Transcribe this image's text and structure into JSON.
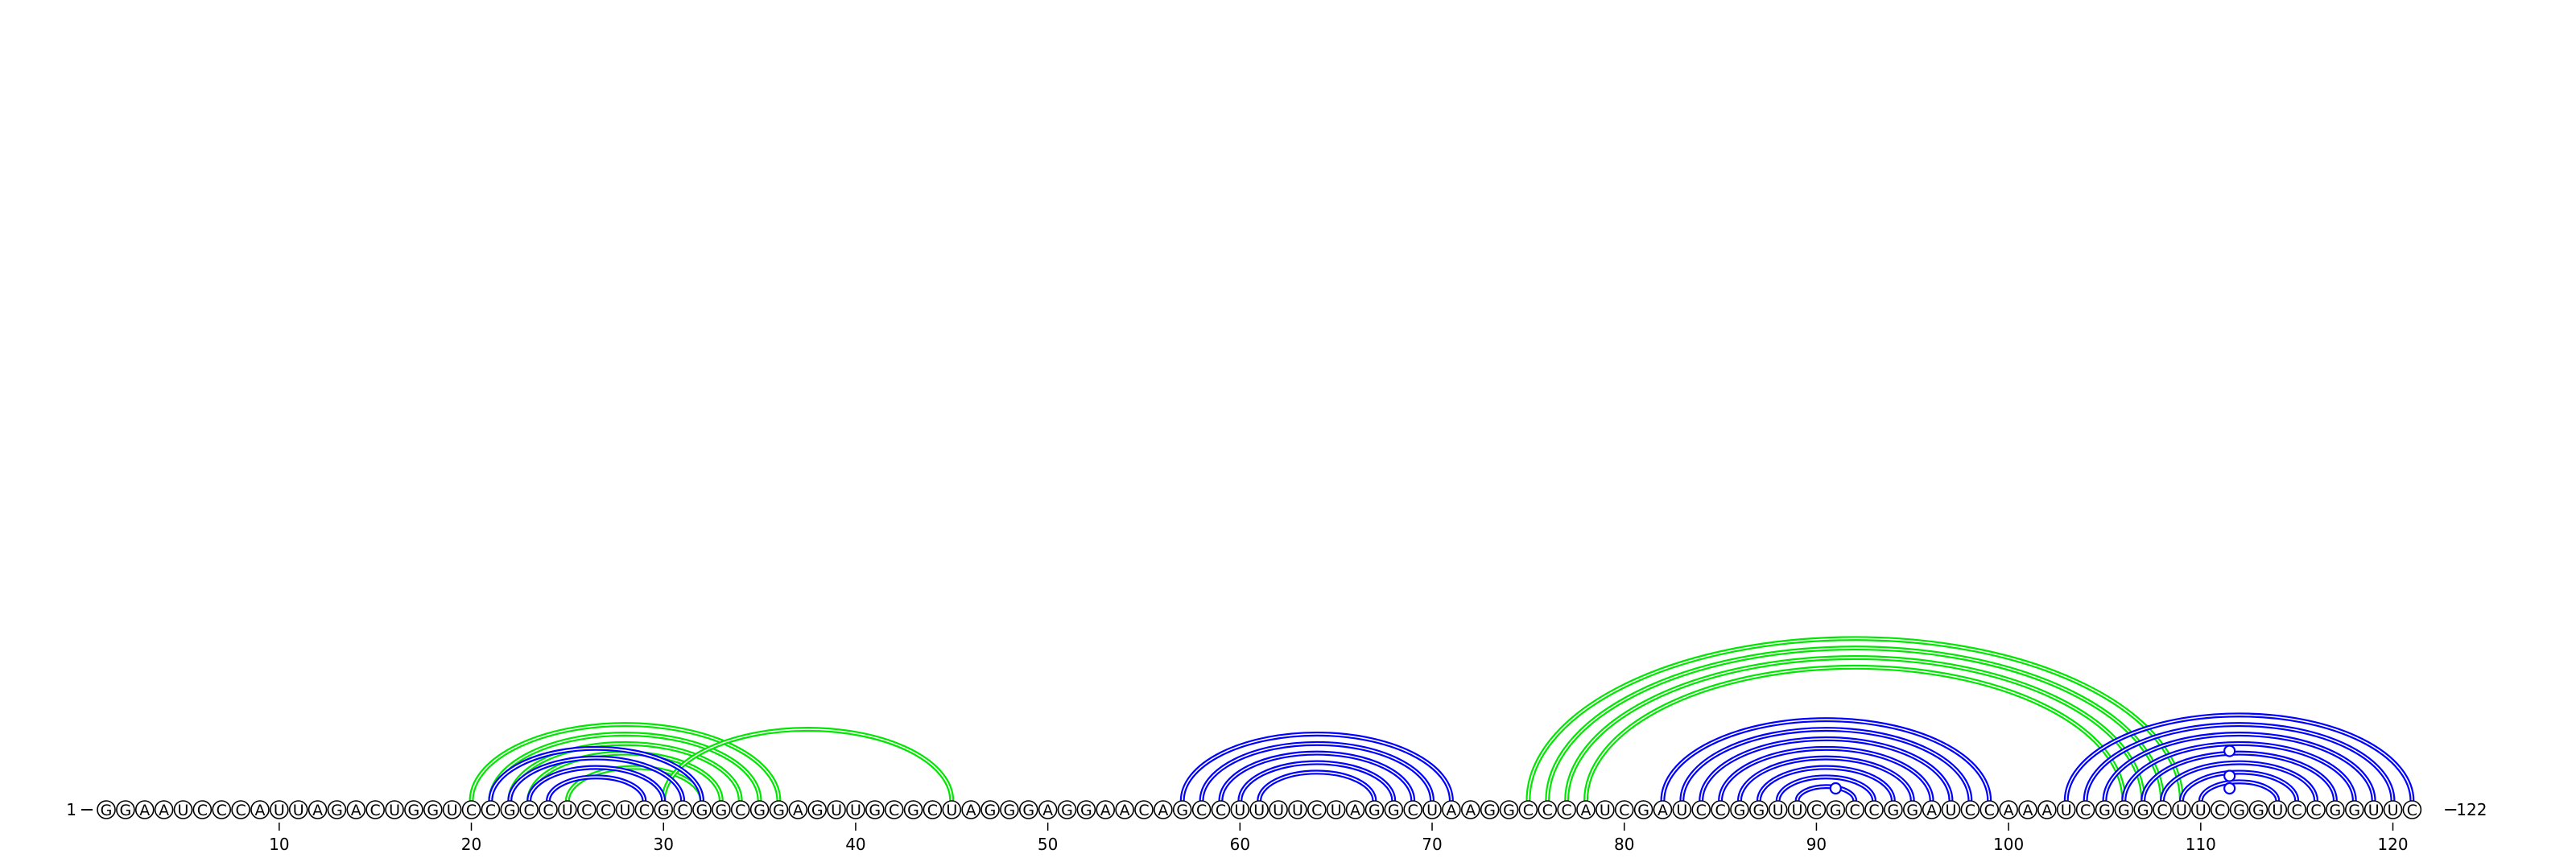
{
  "sequence": "GGAAUCCCAUUAGACUGGUCCGCCUCCUCGCGGCGGAGUUGCGCUAGGGAGGAACAGCCUUUUCUAGGCUAAGGCCCAUCGAUCCGGUUCGCCGGAUCCAAAUCGGGCUUCGGUCCGGUUC",
  "start_label": "1",
  "end_label": "122",
  "ticks": [
    10,
    20,
    30,
    40,
    50,
    60,
    70,
    80,
    90,
    100,
    110,
    120
  ],
  "colors": {
    "primary": "#0000ff",
    "secondary": "#00e600",
    "outline": "#000000",
    "background": "#ffffff"
  },
  "chart_data": {
    "type": "arc-diagram",
    "title": "",
    "length": 122,
    "primary_pairs": [
      [
        21,
        32
      ],
      [
        22,
        31
      ],
      [
        23,
        30
      ],
      [
        24,
        29
      ],
      [
        57,
        71
      ],
      [
        58,
        70
      ],
      [
        59,
        69
      ],
      [
        60,
        68
      ],
      [
        61,
        67
      ],
      [
        82,
        99
      ],
      [
        83,
        98
      ],
      [
        84,
        97
      ],
      [
        85,
        96
      ],
      [
        86,
        95
      ],
      [
        87,
        94
      ],
      [
        88,
        93
      ],
      [
        89,
        92
      ],
      [
        103,
        121
      ],
      [
        104,
        120
      ],
      [
        105,
        119
      ],
      [
        106,
        118
      ],
      [
        107,
        117
      ],
      [
        108,
        116
      ],
      [
        109,
        115
      ],
      [
        110,
        114
      ]
    ],
    "primary_pair_style": "double",
    "secondary_pairs": [
      [
        20,
        36
      ],
      [
        21,
        35
      ],
      [
        22,
        34
      ],
      [
        23,
        33
      ],
      [
        25,
        32
      ],
      [
        30,
        45
      ],
      [
        75,
        109
      ],
      [
        76,
        108
      ],
      [
        77,
        107
      ],
      [
        78,
        106
      ]
    ],
    "secondary_pair_style": "double",
    "loop_markers": [
      {
        "position": 91,
        "height": 1
      },
      {
        "position": 111.5,
        "height": 1
      },
      {
        "position": 111.5,
        "height": 2
      },
      {
        "position": 111.5,
        "height": 4
      }
    ]
  }
}
